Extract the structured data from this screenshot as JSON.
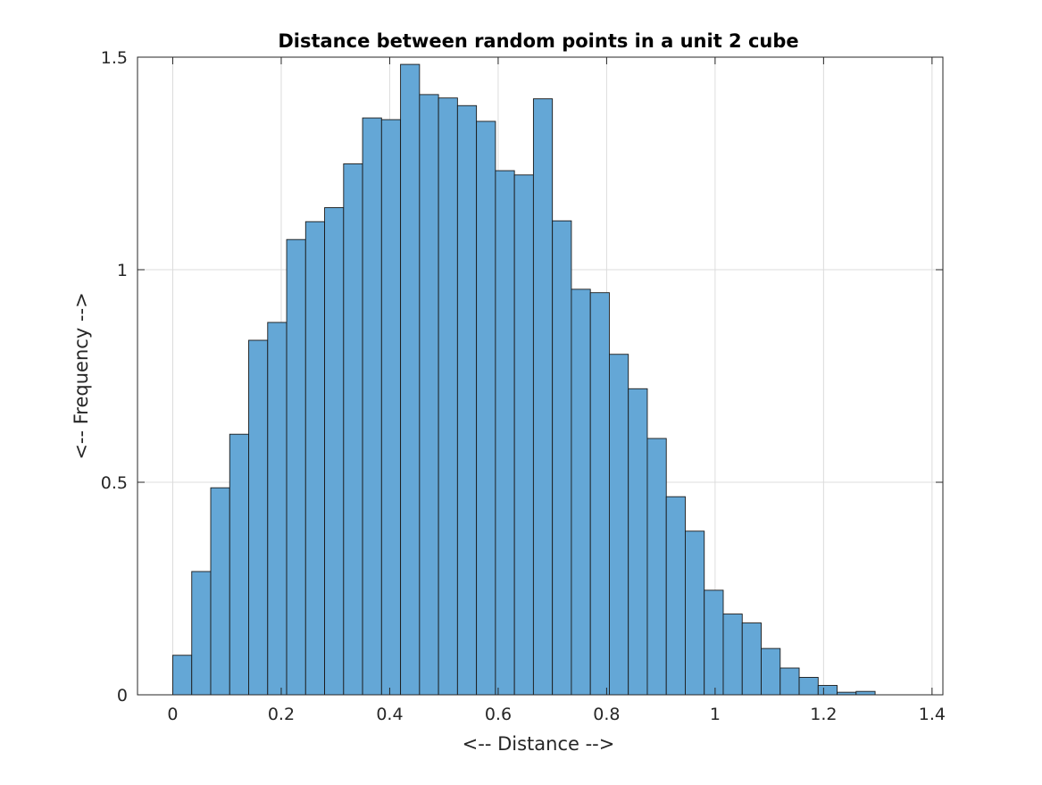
{
  "chart_data": {
    "type": "bar",
    "title": "Distance between random points in a unit 2 cube",
    "xlabel": "<-- Distance -->",
    "ylabel": "<-- Frequency -->",
    "xlim": [
      -0.065,
      1.42
    ],
    "ylim": [
      0,
      1.5
    ],
    "xticks": [
      0,
      0.2,
      0.4,
      0.6,
      0.8,
      1,
      1.2,
      1.4
    ],
    "xtick_labels": [
      "0",
      "0.2",
      "0.4",
      "0.6",
      "0.8",
      "1",
      "1.2",
      "1.4"
    ],
    "yticks": [
      0,
      0.5,
      1,
      1.5
    ],
    "ytick_labels": [
      "0",
      "0.5",
      "1",
      "1.5"
    ],
    "grid": true,
    "bar_color": "#64a7d6",
    "edge_color": "#1a1a1a",
    "bin_width": 0.035,
    "bin_start": 0,
    "values": [
      0.093,
      0.29,
      0.487,
      0.613,
      0.834,
      0.876,
      1.071,
      1.113,
      1.146,
      1.249,
      1.357,
      1.353,
      1.483,
      1.412,
      1.404,
      1.386,
      1.349,
      1.233,
      1.223,
      1.402,
      1.115,
      0.954,
      0.946,
      0.801,
      0.72,
      0.603,
      0.466,
      0.385,
      0.246,
      0.19,
      0.169,
      0.109,
      0.063,
      0.041,
      0.022,
      0.006,
      0.008
    ]
  }
}
